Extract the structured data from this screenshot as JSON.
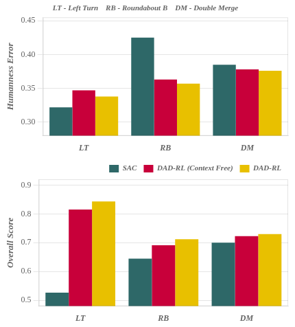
{
  "chart_data": [
    {
      "type": "bar",
      "title": "LT - Left Turn    RB - Roundabout B    DM - Double Merge",
      "categories": [
        "LT",
        "RB",
        "DM"
      ],
      "series": [
        {
          "name": "SAC",
          "color": "#2E6868",
          "values": [
            0.322,
            0.425,
            0.385
          ]
        },
        {
          "name": "DAD-RL (Context Free)",
          "color": "#C8003A",
          "values": [
            0.347,
            0.363,
            0.378
          ]
        },
        {
          "name": "DAD-RL",
          "color": "#E8C000",
          "values": [
            0.338,
            0.357,
            0.376
          ]
        }
      ],
      "ylabel": "Humanness Error",
      "ylim": [
        0.28,
        0.455
      ],
      "yticks": [
        {
          "value": 0.3,
          "label": "0.30"
        },
        {
          "value": 0.35,
          "label": "0.35"
        },
        {
          "value": 0.4,
          "label": "0.40"
        },
        {
          "value": 0.45,
          "label": "0.45"
        }
      ],
      "grid": true
    },
    {
      "type": "bar",
      "categories": [
        "LT",
        "RB",
        "DM"
      ],
      "series": [
        {
          "name": "SAC",
          "color": "#2E6868",
          "values": [
            0.527,
            0.645,
            0.7
          ]
        },
        {
          "name": "DAD-RL (Context Free)",
          "color": "#C8003A",
          "values": [
            0.815,
            0.691,
            0.723
          ]
        },
        {
          "name": "DAD-RL",
          "color": "#E8C000",
          "values": [
            0.843,
            0.712,
            0.73
          ]
        }
      ],
      "ylabel": "Overall Score",
      "ylim": [
        0.48,
        0.92
      ],
      "yticks": [
        0.5,
        0.6,
        0.7,
        0.8,
        0.9
      ],
      "grid": true,
      "legend": "upper right"
    }
  ]
}
